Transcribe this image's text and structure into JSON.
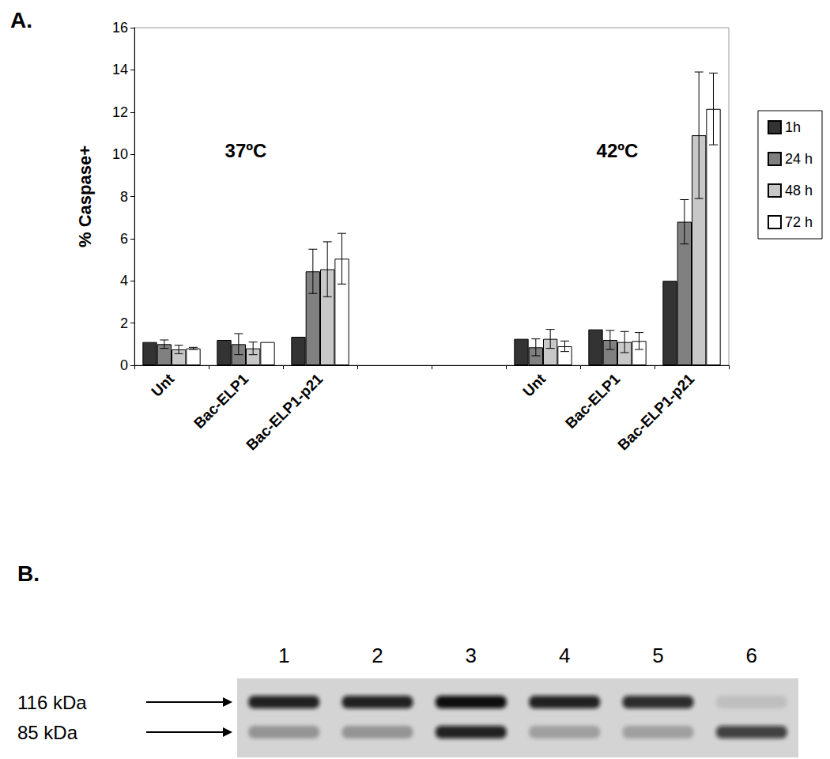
{
  "chart_data": {
    "type": "bar",
    "title": "A.",
    "categories": [
      "Unt",
      "Bac-ELP1",
      "Bac-ELP1-p21",
      null,
      null,
      "Unt",
      "Bac-ELP1",
      "Bac-ELP1-p21"
    ],
    "annotations": [
      "37ºC",
      "42ºC"
    ],
    "y_label": "% Caspase+",
    "ylim": [
      0,
      16
    ],
    "yticks": [
      0,
      2,
      4,
      6,
      8,
      10,
      12,
      14,
      16
    ],
    "grid": false,
    "legend": "right",
    "data_labels": false,
    "series": [
      {
        "name": "1h",
        "color": "#333333",
        "values": [
          1.1,
          1.2,
          1.35,
          null,
          null,
          1.25,
          1.7,
          4.0
        ],
        "errors": [
          null,
          null,
          null,
          null,
          null,
          null,
          null,
          null
        ]
      },
      {
        "name": "24 h",
        "color": "#808080",
        "values": [
          1.0,
          1.0,
          4.45,
          null,
          null,
          0.85,
          1.2,
          6.8
        ],
        "errors": [
          0.2,
          0.5,
          1.05,
          null,
          null,
          0.4,
          0.45,
          1.05
        ]
      },
      {
        "name": "48 h",
        "color": "#c8c8c8",
        "values": [
          0.75,
          0.8,
          4.55,
          null,
          null,
          1.25,
          1.1,
          10.9
        ],
        "errors": [
          0.2,
          0.3,
          1.3,
          null,
          null,
          0.45,
          0.5,
          3.0
        ]
      },
      {
        "name": "72 h",
        "color": "#ffffff",
        "values": [
          0.8,
          1.1,
          5.05,
          null,
          null,
          0.9,
          1.15,
          12.15
        ],
        "errors": [
          0.05,
          null,
          1.2,
          null,
          null,
          0.25,
          0.4,
          1.7
        ]
      }
    ]
  },
  "blot": {
    "title": "B.",
    "lanes": [
      "1",
      "2",
      "3",
      "4",
      "5",
      "6"
    ],
    "markers": [
      {
        "label": "116 kDa",
        "intensities": [
          0.9,
          0.9,
          1.0,
          0.9,
          0.85,
          0.1
        ]
      },
      {
        "label": "85 kDa",
        "intensities": [
          0.3,
          0.3,
          0.9,
          0.25,
          0.25,
          0.75
        ]
      }
    ]
  }
}
